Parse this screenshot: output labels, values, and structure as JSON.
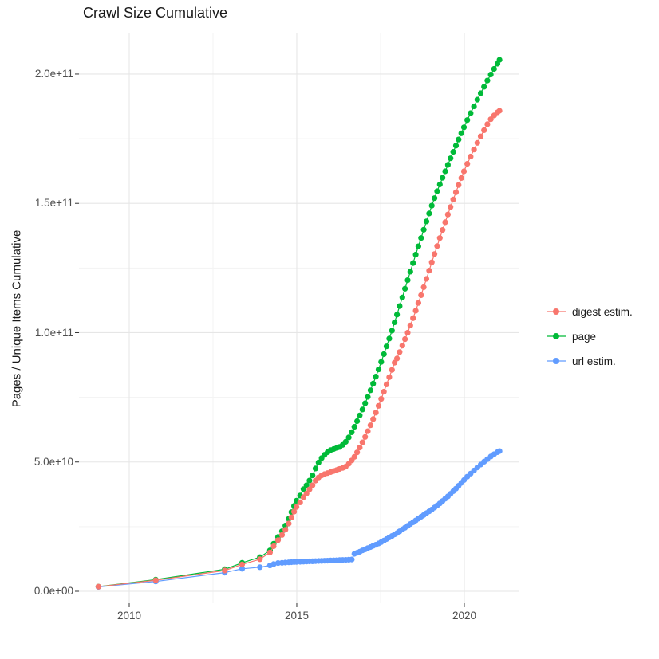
{
  "title": "Crawl Size Cumulative",
  "y_axis_title": "Pages / Unique Items Cumulative",
  "legend": {
    "items": [
      {
        "label": "digest estim.",
        "color": "#F8766D"
      },
      {
        "label": "page",
        "color": "#00BA38"
      },
      {
        "label": "url estim.",
        "color": "#619CFF"
      }
    ]
  },
  "chart_data": {
    "type": "scatter",
    "title": "Crawl Size Cumulative",
    "xlabel": "",
    "ylabel": "Pages / Unique Items Cumulative",
    "x_unit": "crawl date (decimal year)",
    "y_unit": "cumulative count, billions (1e9)",
    "grid": true,
    "legend_position": "right",
    "xlim": [
      2008.5,
      2021.62
    ],
    "ylim_e9": [
      -4.62,
      215.7
    ],
    "x_ticks": [
      {
        "label": "2010",
        "value": 2010
      },
      {
        "label": "2015",
        "value": 2015
      },
      {
        "label": "2020",
        "value": 2020
      }
    ],
    "x_minor": [
      2012.5,
      2017.5
    ],
    "y_ticks": [
      {
        "label": "0.0e+00",
        "value_e9": 0
      },
      {
        "label": "5.0e+10",
        "value_e9": 50
      },
      {
        "label": "1.0e+11",
        "value_e9": 100
      },
      {
        "label": "1.5e+11",
        "value_e9": 150
      },
      {
        "label": "2.0e+11",
        "value_e9": 200
      }
    ],
    "y_minor_e9": [
      25,
      75,
      125,
      175
    ],
    "x": [
      2009.08,
      2010.79,
      2012.85,
      2013.37,
      2013.9,
      2014.2,
      2014.31,
      2014.44,
      2014.56,
      2014.66,
      2014.76,
      2014.84,
      2014.92,
      2014.99,
      2015.1,
      2015.2,
      2015.29,
      2015.38,
      2015.47,
      2015.56,
      2015.65,
      2015.74,
      2015.83,
      2015.92,
      2016.01,
      2016.1,
      2016.19,
      2016.28,
      2016.37,
      2016.46,
      2016.55,
      2016.64,
      2016.72,
      2016.8,
      2016.88,
      2016.96,
      2017.04,
      2017.12,
      2017.2,
      2017.28,
      2017.36,
      2017.44,
      2017.52,
      2017.6,
      2017.68,
      2017.76,
      2017.84,
      2017.92,
      2017.99,
      2018.07,
      2018.15,
      2018.23,
      2018.31,
      2018.39,
      2018.47,
      2018.55,
      2018.63,
      2018.71,
      2018.79,
      2018.87,
      2018.95,
      2019.03,
      2019.11,
      2019.19,
      2019.27,
      2019.35,
      2019.43,
      2019.51,
      2019.59,
      2019.67,
      2019.75,
      2019.83,
      2019.91,
      2019.99,
      2020.09,
      2020.19,
      2020.29,
      2020.39,
      2020.49,
      2020.59,
      2020.69,
      2020.79,
      2020.89,
      2020.99,
      2021.05
    ],
    "series": [
      {
        "name": "digest estim.",
        "color": "#F8766D",
        "values_e9": [
          1.8,
          4.3,
          8.0,
          10.4,
          12.4,
          15.0,
          17.4,
          19.8,
          21.8,
          23.8,
          26.2,
          28.6,
          30.8,
          32.6,
          34.4,
          36.4,
          37.8,
          39.4,
          41.0,
          42.8,
          44.0,
          44.8,
          45.3,
          45.7,
          46.1,
          46.5,
          46.9,
          47.3,
          47.7,
          48.2,
          49.3,
          50.6,
          52.0,
          53.7,
          55.6,
          57.6,
          59.7,
          61.9,
          64.2,
          66.6,
          69.1,
          71.7,
          74.4,
          77.2,
          80.0,
          82.8,
          85.6,
          88.4,
          90.0,
          92.5,
          95.0,
          97.5,
          100.0,
          102.8,
          105.6,
          108.5,
          111.5,
          114.5,
          117.6,
          120.8,
          124.0,
          127.2,
          130.4,
          133.5,
          136.6,
          139.7,
          142.7,
          145.7,
          148.6,
          151.5,
          154.3,
          157.1,
          159.8,
          162.4,
          165.3,
          168.1,
          170.8,
          173.4,
          175.9,
          178.3,
          180.6,
          182.5,
          184.0,
          185.2,
          185.8
        ]
      },
      {
        "name": "page",
        "color": "#00BA38",
        "values_e9": [
          1.8,
          4.5,
          8.5,
          11.0,
          13.2,
          15.8,
          18.4,
          21.0,
          23.2,
          25.4,
          28.0,
          30.6,
          33.0,
          35.0,
          37.0,
          39.5,
          41.0,
          42.8,
          44.8,
          47.5,
          49.8,
          51.5,
          52.8,
          53.8,
          54.6,
          55.0,
          55.4,
          55.8,
          56.6,
          57.8,
          59.5,
          61.5,
          63.6,
          65.8,
          68.0,
          70.3,
          72.7,
          75.2,
          77.7,
          80.3,
          83.0,
          85.8,
          88.7,
          91.7,
          94.7,
          97.7,
          100.8,
          104.0,
          107.0,
          110.3,
          113.6,
          117.0,
          120.3,
          123.6,
          126.9,
          130.2,
          133.4,
          136.6,
          139.8,
          143.0,
          146.1,
          149.1,
          152.0,
          154.7,
          157.3,
          159.9,
          162.4,
          164.9,
          167.4,
          169.9,
          172.3,
          174.7,
          177.1,
          179.4,
          182.2,
          184.9,
          187.5,
          190.1,
          192.6,
          195.1,
          197.5,
          199.8,
          202.0,
          204.0,
          205.5
        ]
      },
      {
        "name": "url estim.",
        "color": "#619CFF",
        "values_e9": [
          1.7,
          3.8,
          7.2,
          8.7,
          9.3,
          10.0,
          10.5,
          10.9,
          11.0,
          11.1,
          11.2,
          11.25,
          11.3,
          11.35,
          11.4,
          11.45,
          11.5,
          11.55,
          11.6,
          11.65,
          11.7,
          11.75,
          11.8,
          11.85,
          11.9,
          11.95,
          12.0,
          12.05,
          12.1,
          12.15,
          12.2,
          12.3,
          14.5,
          14.9,
          15.3,
          15.8,
          16.2,
          16.7,
          17.1,
          17.6,
          18.0,
          18.5,
          19.0,
          19.6,
          20.2,
          20.8,
          21.4,
          22.0,
          22.5,
          23.2,
          23.9,
          24.6,
          25.3,
          26.0,
          26.7,
          27.4,
          28.1,
          28.8,
          29.5,
          30.2,
          30.9,
          31.6,
          32.4,
          33.2,
          34.0,
          34.9,
          35.8,
          36.7,
          37.7,
          38.7,
          39.7,
          40.8,
          41.9,
          43.0,
          44.3,
          45.5,
          46.7,
          47.9,
          49.0,
          50.1,
          51.1,
          52.1,
          53.0,
          53.8,
          54.2
        ]
      }
    ],
    "draw_order": [
      "page",
      "url estim.",
      "digest estim."
    ],
    "style": {
      "grid_major_color": "#E6E6E6",
      "grid_minor_color": "#F3F3F3",
      "tick_mark_color": "#333333",
      "point_radius": 3.6
    }
  }
}
